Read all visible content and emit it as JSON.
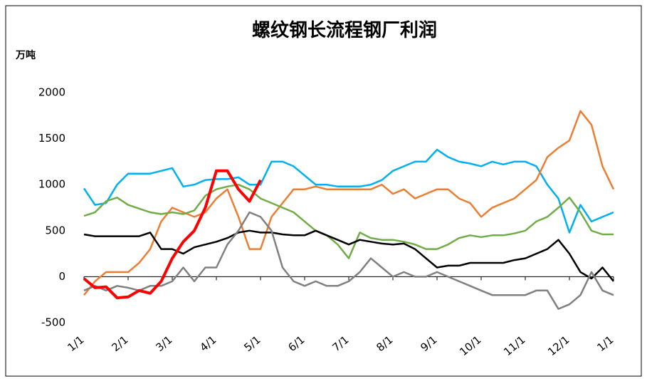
{
  "chart_data": {
    "type": "line",
    "title": "螺纹钢长流程钢厂利润",
    "y_unit": "万吨",
    "ylim": [
      -500,
      2000
    ],
    "yticks": [
      -500,
      0,
      500,
      1000,
      1500,
      2000
    ],
    "categories": [
      "1/1",
      null,
      null,
      null,
      "2/1",
      null,
      null,
      null,
      "3/1",
      null,
      null,
      null,
      "4/1",
      null,
      null,
      null,
      "5/1",
      null,
      null,
      null,
      "6/1",
      null,
      null,
      null,
      "7/1",
      null,
      null,
      null,
      "8/1",
      null,
      null,
      null,
      "9/1",
      null,
      null,
      null,
      "10/1",
      null,
      null,
      null,
      "11/1",
      null,
      null,
      null,
      "12/1",
      null,
      null,
      null,
      "1/1"
    ],
    "series": [
      {
        "color": "#00b0f0",
        "values": [
          960,
          780,
          800,
          1000,
          1120,
          1120,
          1120,
          1150,
          1180,
          980,
          1000,
          1050,
          1060,
          1060,
          1080,
          1000,
          1000,
          1250,
          1250,
          1200,
          1100,
          1000,
          1000,
          980,
          980,
          980,
          1000,
          1050,
          1150,
          1200,
          1250,
          1250,
          1380,
          1300,
          1250,
          1230,
          1200,
          1250,
          1220,
          1250,
          1250,
          1200,
          1000,
          850,
          480,
          780,
          600,
          650,
          700
        ]
      },
      {
        "color": "#ed7d31",
        "values": [
          -200,
          -50,
          50,
          50,
          50,
          150,
          300,
          600,
          750,
          700,
          650,
          700,
          850,
          950,
          650,
          300,
          300,
          650,
          800,
          950,
          950,
          980,
          950,
          950,
          950,
          950,
          950,
          1000,
          900,
          950,
          850,
          900,
          950,
          950,
          850,
          800,
          650,
          750,
          800,
          850,
          950,
          1050,
          1300,
          1400,
          1480,
          1800,
          1650,
          1200,
          950
        ]
      },
      {
        "color": "#70ad47",
        "values": [
          660,
          700,
          820,
          860,
          780,
          740,
          700,
          680,
          700,
          680,
          720,
          880,
          950,
          980,
          1000,
          950,
          850,
          800,
          750,
          700,
          600,
          500,
          450,
          350,
          200,
          480,
          420,
          400,
          400,
          380,
          350,
          300,
          300,
          350,
          420,
          450,
          430,
          450,
          450,
          470,
          500,
          600,
          650,
          750,
          860,
          700,
          500,
          460,
          460
        ]
      },
      {
        "color": "#000000",
        "values": [
          460,
          440,
          440,
          440,
          440,
          440,
          480,
          300,
          300,
          250,
          320,
          350,
          380,
          420,
          480,
          500,
          480,
          480,
          460,
          450,
          450,
          500,
          450,
          400,
          350,
          400,
          380,
          360,
          350,
          360,
          300,
          200,
          100,
          120,
          120,
          150,
          150,
          150,
          150,
          180,
          200,
          250,
          300,
          400,
          250,
          50,
          -20,
          100,
          -50
        ]
      },
      {
        "color": "#808080",
        "values": [
          -150,
          -100,
          -150,
          -100,
          -120,
          -150,
          -100,
          -100,
          -50,
          100,
          -50,
          100,
          100,
          350,
          500,
          700,
          650,
          500,
          100,
          -50,
          -100,
          -50,
          -100,
          -100,
          -50,
          50,
          200,
          100,
          0,
          50,
          0,
          0,
          50,
          0,
          -50,
          -100,
          -150,
          -200,
          -200,
          -200,
          -200,
          -150,
          -150,
          -350,
          -300,
          -200,
          50,
          -150,
          -200
        ]
      },
      {
        "color": "#ff0000",
        "width": 4,
        "values": [
          -20,
          -120,
          -110,
          -230,
          -220,
          -150,
          -180,
          -50,
          200,
          380,
          500,
          750,
          1150,
          1150,
          950,
          820,
          1050,
          null,
          null,
          null,
          null,
          null,
          null,
          null,
          null,
          null,
          null,
          null,
          null,
          null,
          null,
          null,
          null,
          null,
          null,
          null,
          null,
          null,
          null,
          null,
          null,
          null,
          null,
          null,
          null,
          null,
          null,
          null,
          null
        ]
      }
    ]
  }
}
